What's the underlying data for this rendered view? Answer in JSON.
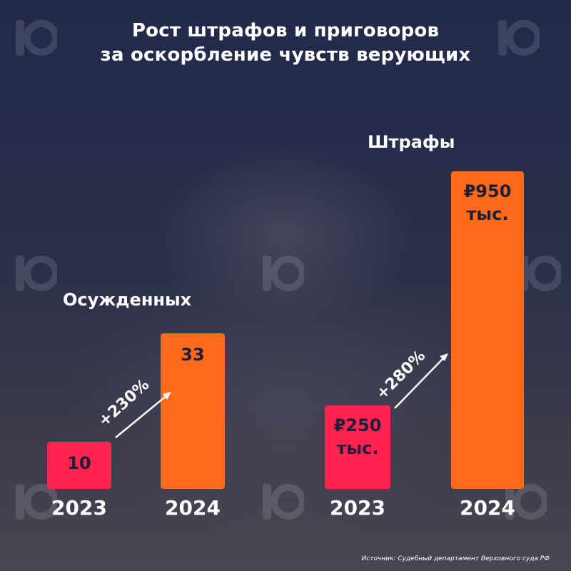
{
  "title_line1": "Рост штрафов и приговоров",
  "title_line2": "за оскорбление чувств верующих",
  "chart_data": [
    {
      "type": "bar",
      "title": "Осужденных",
      "categories": [
        "2023",
        "2024"
      ],
      "values": [
        10,
        33
      ],
      "value_labels": [
        "10",
        "33"
      ],
      "change_label": "+230%",
      "colors": [
        "#ff2350",
        "#ff6a1a"
      ]
    },
    {
      "type": "bar",
      "title": "Штрафы",
      "categories": [
        "2023",
        "2024"
      ],
      "values": [
        250,
        950
      ],
      "value_labels": [
        [
          "₽250",
          "тыс."
        ],
        [
          "₽950",
          "тыс."
        ]
      ],
      "change_label": "+280%",
      "colors": [
        "#ff2350",
        "#ff6a1a"
      ]
    }
  ],
  "source": "Источник: Судебный департамент Верховного суда РФ",
  "logo_icon": "10-watermark-logo-icon"
}
